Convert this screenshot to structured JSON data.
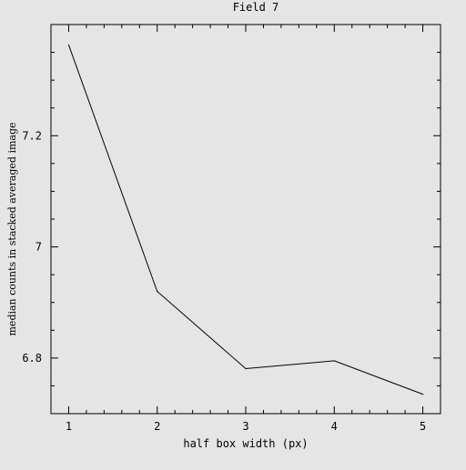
{
  "chart_data": {
    "type": "line",
    "title": "Field 7",
    "xlabel": "half box width (px)",
    "ylabel": "median counts in stacked averaged image",
    "xlim": [
      0.8,
      5.2
    ],
    "ylim": [
      6.7,
      7.4
    ],
    "xticks": [
      1,
      2,
      3,
      4,
      5
    ],
    "xtick_labels": [
      "1",
      "2",
      "3",
      "4",
      "5"
    ],
    "yticks": [
      6.8,
      7.0,
      7.2
    ],
    "ytick_labels": [
      "6.8",
      "7",
      "7.2"
    ],
    "grid": false,
    "x": [
      1,
      2,
      3,
      4,
      5
    ],
    "series": [
      {
        "values": [
          7.363,
          6.92,
          6.781,
          6.795,
          6.735
        ]
      }
    ],
    "colors": {
      "background": "#e5e5e5",
      "line": "#000000",
      "axes": "#000000"
    }
  }
}
